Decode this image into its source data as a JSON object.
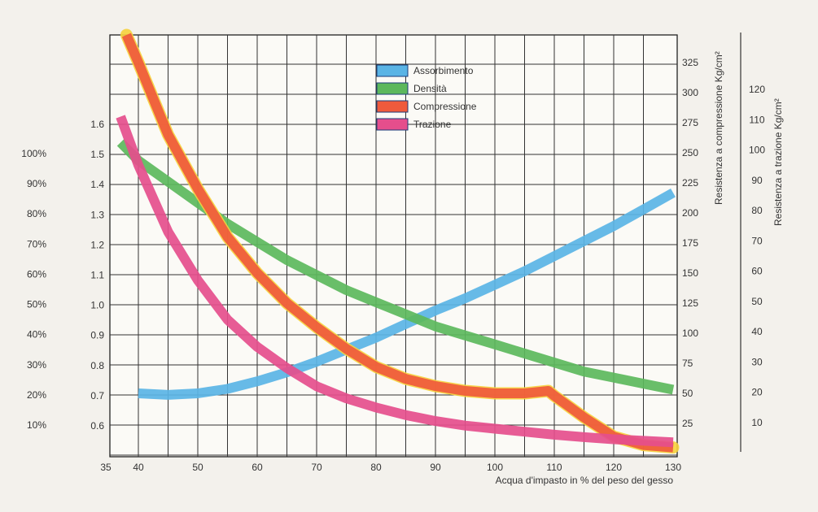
{
  "chart_data": {
    "type": "line",
    "xlabel": "Acqua d'impasto in % del peso del gesso",
    "right_axis_titles": {
      "compressione": "Resistenza a compressione Kg/cm²",
      "trazione": "Resistenza a trazione Kg/cm²"
    },
    "x_ticks": [
      "35",
      "40",
      "50",
      "60",
      "70",
      "80",
      "90",
      "100",
      "110",
      "120",
      "130"
    ],
    "x_tick_values": [
      35,
      40,
      50,
      60,
      70,
      80,
      90,
      100,
      110,
      120,
      130
    ],
    "xlim": [
      35,
      130
    ],
    "axes": {
      "percent": {
        "ticks": [
          "10%",
          "20%",
          "30%",
          "40%",
          "50%",
          "60%",
          "70%",
          "80%",
          "90%",
          "100%"
        ],
        "values": [
          10,
          20,
          30,
          40,
          50,
          60,
          70,
          80,
          90,
          100
        ]
      },
      "densita": {
        "ticks": [
          "0.6",
          "0.7",
          "0.8",
          "0.9",
          "1.0",
          "1.1",
          "1.2",
          "1.3",
          "1.4",
          "1.5",
          "1.6"
        ],
        "values": [
          0.6,
          0.7,
          0.8,
          0.9,
          1.0,
          1.1,
          1.2,
          1.3,
          1.4,
          1.5,
          1.6
        ]
      },
      "compressione": {
        "ticks": [
          "25",
          "50",
          "75",
          "100",
          "125",
          "150",
          "175",
          "200",
          "225",
          "250",
          "275",
          "300",
          "325"
        ],
        "values": [
          25,
          50,
          75,
          100,
          125,
          150,
          175,
          200,
          225,
          250,
          275,
          300,
          325
        ]
      },
      "trazione": {
        "ticks": [
          "10",
          "20",
          "30",
          "40",
          "50",
          "60",
          "70",
          "80",
          "90",
          "100",
          "110",
          "120"
        ],
        "values": [
          10,
          20,
          30,
          40,
          50,
          60,
          70,
          80,
          90,
          100,
          110,
          120
        ]
      }
    },
    "series": [
      {
        "name": "Assorbimento",
        "axis": "percent",
        "color": "#5ab4e5",
        "x": [
          40,
          45,
          50,
          55,
          60,
          65,
          70,
          75,
          80,
          85,
          90,
          95,
          100,
          105,
          110,
          115,
          120,
          125,
          130
        ],
        "y": [
          20.5,
          20,
          20.5,
          22,
          24.5,
          27.5,
          31,
          35,
          39,
          43.5,
          48,
          52,
          56.5,
          61,
          66,
          71,
          76,
          81.5,
          87
        ]
      },
      {
        "name": "Densità",
        "axis": "densita",
        "color": "#5cb85c",
        "x": [
          37,
          40,
          45,
          50,
          55,
          60,
          65,
          70,
          75,
          80,
          85,
          90,
          95,
          100,
          105,
          110,
          115,
          120,
          125,
          130
        ],
        "y": [
          1.54,
          1.48,
          1.41,
          1.34,
          1.27,
          1.21,
          1.15,
          1.1,
          1.05,
          1.01,
          0.97,
          0.93,
          0.9,
          0.87,
          0.84,
          0.81,
          0.78,
          0.76,
          0.74,
          0.72
        ]
      },
      {
        "name": "Compressione",
        "axis": "compressione",
        "color": "#ef5a3c",
        "x": [
          38,
          40,
          45,
          50,
          55,
          60,
          65,
          70,
          75,
          80,
          85,
          90,
          95,
          100,
          105,
          109,
          110,
          115,
          120,
          125,
          130
        ],
        "y": [
          348,
          325,
          265,
          220,
          180,
          150,
          125,
          105,
          87,
          72,
          62,
          56,
          52,
          50,
          50,
          52,
          48,
          30,
          14,
          7,
          5
        ]
      },
      {
        "name": "Trazione",
        "axis": "trazione",
        "color": "#e54e8c",
        "x": [
          37,
          40,
          45,
          50,
          55,
          60,
          65,
          70,
          75,
          80,
          85,
          90,
          95,
          100,
          105,
          110,
          115,
          120,
          125,
          130
        ],
        "y": [
          111,
          95,
          73,
          57,
          44,
          35,
          28,
          22,
          18,
          15,
          12.5,
          10.5,
          9,
          8,
          7,
          6,
          5.2,
          4.5,
          4,
          3.5
        ]
      }
    ],
    "legend": {
      "placement": "top-center",
      "items": [
        "Assorbimento",
        "Densità",
        "Compressione",
        "Trazione"
      ]
    },
    "grid": true
  }
}
